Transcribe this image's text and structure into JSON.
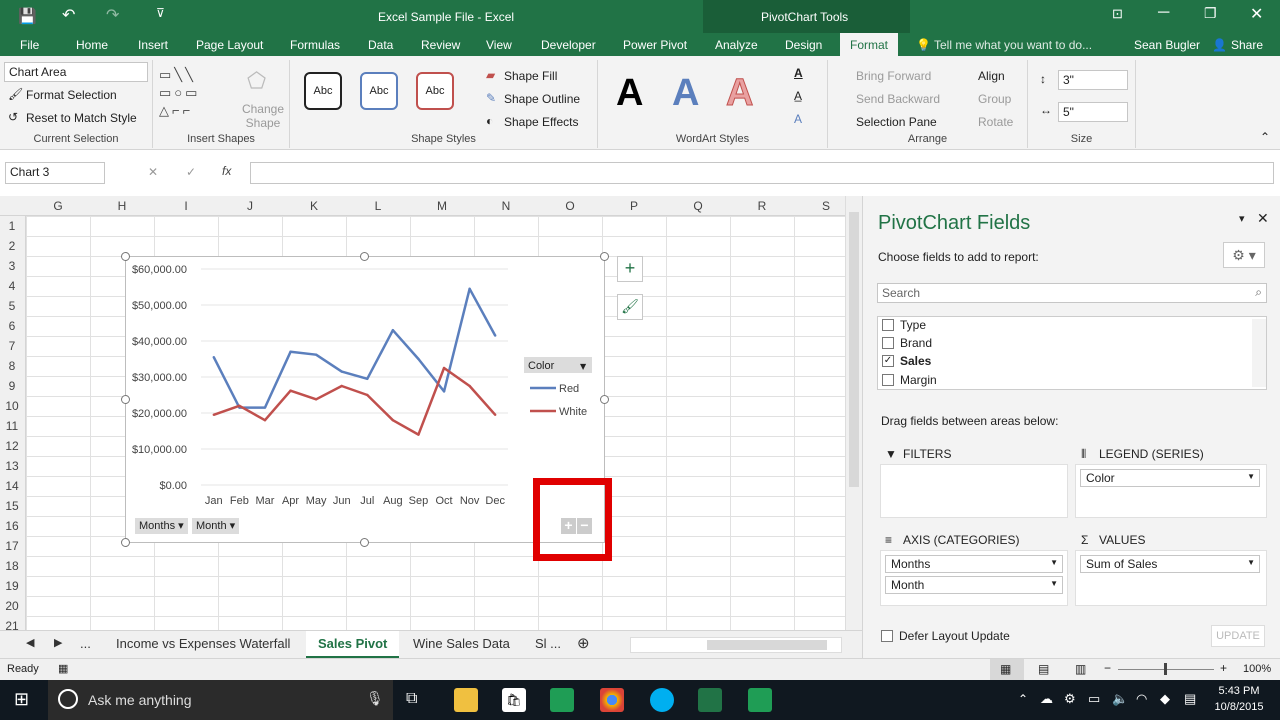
{
  "title_bar": {
    "title": "Excel Sample File - Excel",
    "context_tools": "PivotChart Tools"
  },
  "ribbon_tabs": [
    "File",
    "Home",
    "Insert",
    "Page Layout",
    "Formulas",
    "Data",
    "Review",
    "View",
    "Developer",
    "Power Pivot",
    "Analyze",
    "Design",
    "Format"
  ],
  "active_tab": "Format",
  "tell_me": "Tell me what you want to do...",
  "user": "Sean Bugler",
  "share": "Share",
  "ribbon": {
    "current_selection": {
      "dropdown": "Chart Area",
      "format_selection": "Format Selection",
      "reset": "Reset to Match Style",
      "label": "Current Selection"
    },
    "insert_shapes": {
      "change_shape": "Change Shape",
      "label": "Insert Shapes"
    },
    "shape_styles": {
      "abc": "Abc",
      "fill": "Shape Fill",
      "outline": "Shape Outline",
      "effects": "Shape Effects",
      "label": "Shape Styles"
    },
    "wordart": {
      "glyph": "A",
      "label": "WordArt Styles"
    },
    "arrange": {
      "bring_forward": "Bring Forward",
      "send_backward": "Send Backward",
      "selection_pane": "Selection Pane",
      "align": "Align",
      "group": "Group",
      "rotate": "Rotate",
      "label": "Arrange"
    },
    "size": {
      "height": "3\"",
      "width": "5\"",
      "label": "Size"
    }
  },
  "name_box": "Chart 3",
  "fx": "fx",
  "columns": [
    "G",
    "H",
    "I",
    "J",
    "K",
    "L",
    "M",
    "N",
    "O",
    "P",
    "Q",
    "R",
    "S"
  ],
  "rows": [
    "1",
    "2",
    "3",
    "4",
    "5",
    "6",
    "7",
    "8",
    "9",
    "10",
    "11",
    "12",
    "13",
    "14",
    "15",
    "16",
    "17",
    "18",
    "19",
    "20",
    "21"
  ],
  "chart_data": {
    "type": "line",
    "categories": [
      "Jan",
      "Feb",
      "Mar",
      "Apr",
      "May",
      "Jun",
      "Jul",
      "Aug",
      "Sep",
      "Oct",
      "Nov",
      "Dec"
    ],
    "series": [
      {
        "name": "Red",
        "color": "#5b7fbd",
        "values": [
          35500,
          21500,
          21500,
          37000,
          36200,
          31500,
          29500,
          43000,
          35000,
          26000,
          54500,
          41500
        ]
      },
      {
        "name": "White",
        "color": "#c0504d",
        "values": [
          19500,
          22000,
          18000,
          26200,
          23800,
          27500,
          25000,
          18000,
          14000,
          32500,
          27500,
          19500
        ]
      }
    ],
    "y_ticks": [
      "$60,000.00",
      "$50,000.00",
      "$40,000.00",
      "$30,000.00",
      "$20,000.00",
      "$10,000.00",
      "$0.00"
    ],
    "ylim": [
      0,
      60000
    ],
    "legend_title": "Color",
    "legend_position": "right",
    "grid": true
  },
  "chart_buttons": {
    "months": "Months",
    "month": "Month",
    "plus": "+",
    "minus": "−"
  },
  "pane": {
    "title": "PivotChart Fields",
    "subtitle": "Choose fields to add to report:",
    "search_placeholder": "Search",
    "fields": [
      {
        "label": "Type",
        "checked": false
      },
      {
        "label": "Brand",
        "checked": false
      },
      {
        "label": "Sales",
        "checked": true
      },
      {
        "label": "Margin",
        "checked": false
      }
    ],
    "drag_text": "Drag fields between areas below:",
    "filters": "FILTERS",
    "legend_series": "LEGEND (SERIES)",
    "legend_value": "Color",
    "axis": "AXIS (CATEGORIES)",
    "axis_values": [
      "Months",
      "Month"
    ],
    "values": "VALUES",
    "values_value": "Sum of Sales",
    "defer": "Defer Layout Update",
    "update": "UPDATE"
  },
  "sheet_tabs": [
    "...",
    "Income vs Expenses Waterfall",
    "Sales Pivot",
    "Wine Sales Data",
    "Sl ..."
  ],
  "active_sheet": "Sales Pivot",
  "status": {
    "ready": "Ready",
    "zoom": "100%"
  },
  "taskbar": {
    "search": "Ask me anything",
    "time": "5:43 PM",
    "date": "10/8/2015"
  },
  "accent": "#217346",
  "highlight_color": "#e00000"
}
